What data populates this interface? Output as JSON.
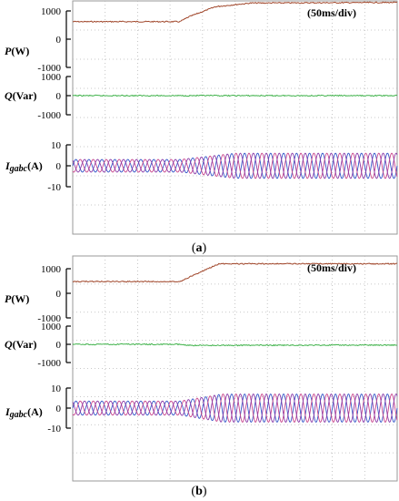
{
  "chart_data": [
    {
      "type": "line",
      "panel_label": "(a)",
      "timebase": "(50ms/div)",
      "time_unit": "div",
      "x_range": [
        0,
        10
      ],
      "grid": true,
      "subplots": [
        {
          "label_main": "P",
          "label_sub": "",
          "label_unit": "(W)",
          "ylim": [
            -1000,
            1000
          ],
          "yticks": [
            1000,
            0,
            -1000
          ],
          "series": [
            {
              "color": "#a0462a",
              "x": [
                0,
                3.3,
                3.6,
                4.4,
                5.5,
                10
              ],
              "values": [
                620,
                620,
                800,
                1150,
                1280,
                1300
              ]
            }
          ]
        },
        {
          "label_main": "Q",
          "label_sub": "",
          "label_unit": "(Var)",
          "ylim": [
            -1000,
            1000
          ],
          "yticks": [
            1000,
            0,
            -1000
          ],
          "series": [
            {
              "color": "#3fb24a",
              "x": [
                0,
                10
              ],
              "values": [
                0,
                0
              ]
            }
          ]
        },
        {
          "label_main": "I",
          "label_sub": "gabc",
          "label_unit": "(A)",
          "ylim": [
            -10,
            10
          ],
          "yticks": [
            10,
            0,
            -10
          ],
          "waveform": {
            "amplitude_before": 3,
            "amplitude_after": 6,
            "ramp_start": 3.3,
            "ramp_end": 5.0,
            "cycles_per_div": 2.5,
            "colors": [
              "#3355c8",
              "#c8468c",
              "#8a3aa8"
            ]
          }
        }
      ]
    },
    {
      "type": "line",
      "panel_label": "(b)",
      "timebase": "(50ms/div)",
      "time_unit": "div",
      "x_range": [
        0,
        10
      ],
      "grid": true,
      "subplots": [
        {
          "label_main": "P",
          "label_sub": "",
          "label_unit": "(W)",
          "ylim": [
            -1000,
            1000
          ],
          "yticks": [
            1000,
            0,
            -1000
          ],
          "series": [
            {
              "color": "#a0462a",
              "x": [
                0,
                3.3,
                4.5,
                10
              ],
              "values": [
                480,
                480,
                1200,
                1200
              ]
            }
          ]
        },
        {
          "label_main": "Q",
          "label_sub": "",
          "label_unit": "(Var)",
          "ylim": [
            -1000,
            1000
          ],
          "yticks": [
            1000,
            0,
            -1000
          ],
          "series": [
            {
              "color": "#3fb24a",
              "x": [
                0,
                3.3,
                3.5,
                10
              ],
              "values": [
                0,
                0,
                -60,
                -40
              ]
            }
          ]
        },
        {
          "label_main": "I",
          "label_sub": "gabc",
          "label_unit": "(A)",
          "ylim": [
            -10,
            10
          ],
          "yticks": [
            10,
            0,
            -10
          ],
          "waveform": {
            "amplitude_before": 3.5,
            "amplitude_after": 7,
            "ramp_start": 3.3,
            "ramp_end": 4.6,
            "cycles_per_div": 2.5,
            "colors": [
              "#3355c8",
              "#c8468c",
              "#8a3aa8"
            ]
          }
        }
      ]
    }
  ]
}
